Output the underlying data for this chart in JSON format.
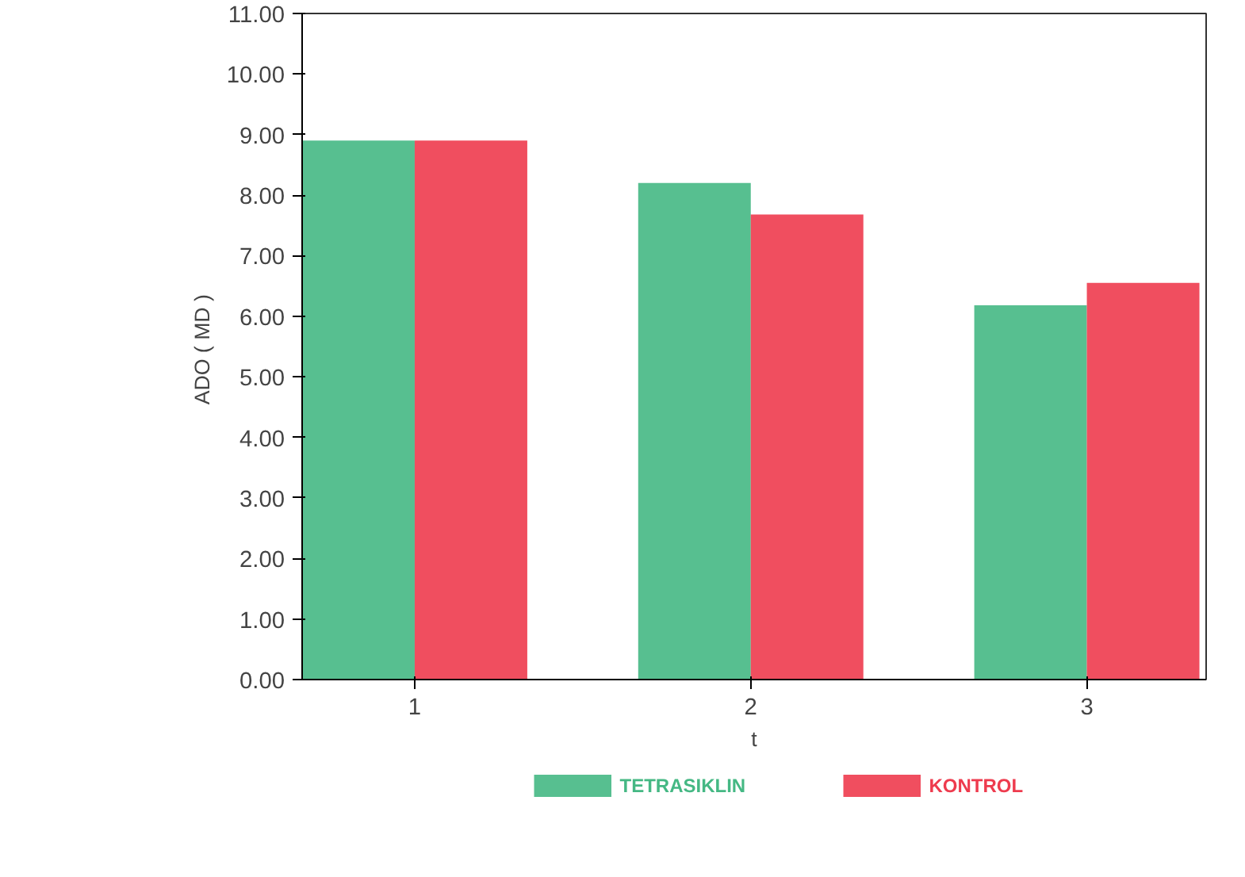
{
  "chart_data": {
    "type": "bar",
    "xlabel": "t",
    "ylabel": "ADO  ( MD )",
    "categories": [
      "1",
      "2",
      "3"
    ],
    "series": [
      {
        "name": "TETRASIKLIN",
        "color": "#45b884",
        "values": [
          8.9,
          8.2,
          6.18
        ]
      },
      {
        "name": "KONTROL",
        "color": "#ee3b4e",
        "values": [
          8.9,
          7.68,
          6.55
        ]
      }
    ],
    "ylim": [
      0,
      11
    ],
    "yticks": [
      {
        "value": 0,
        "label": "0.00"
      },
      {
        "value": 1,
        "label": "1.00"
      },
      {
        "value": 2,
        "label": "2.00"
      },
      {
        "value": 3,
        "label": "3.00"
      },
      {
        "value": 4,
        "label": "4.00"
      },
      {
        "value": 5,
        "label": "5.00"
      },
      {
        "value": 6,
        "label": "6.00"
      },
      {
        "value": 7,
        "label": "7.00"
      },
      {
        "value": 8,
        "label": "8.00"
      },
      {
        "value": 9,
        "label": "9.00"
      },
      {
        "value": 10,
        "label": "10.00"
      },
      {
        "value": 11,
        "label": "11.00"
      }
    ],
    "grid": false,
    "legend": "bottom"
  }
}
